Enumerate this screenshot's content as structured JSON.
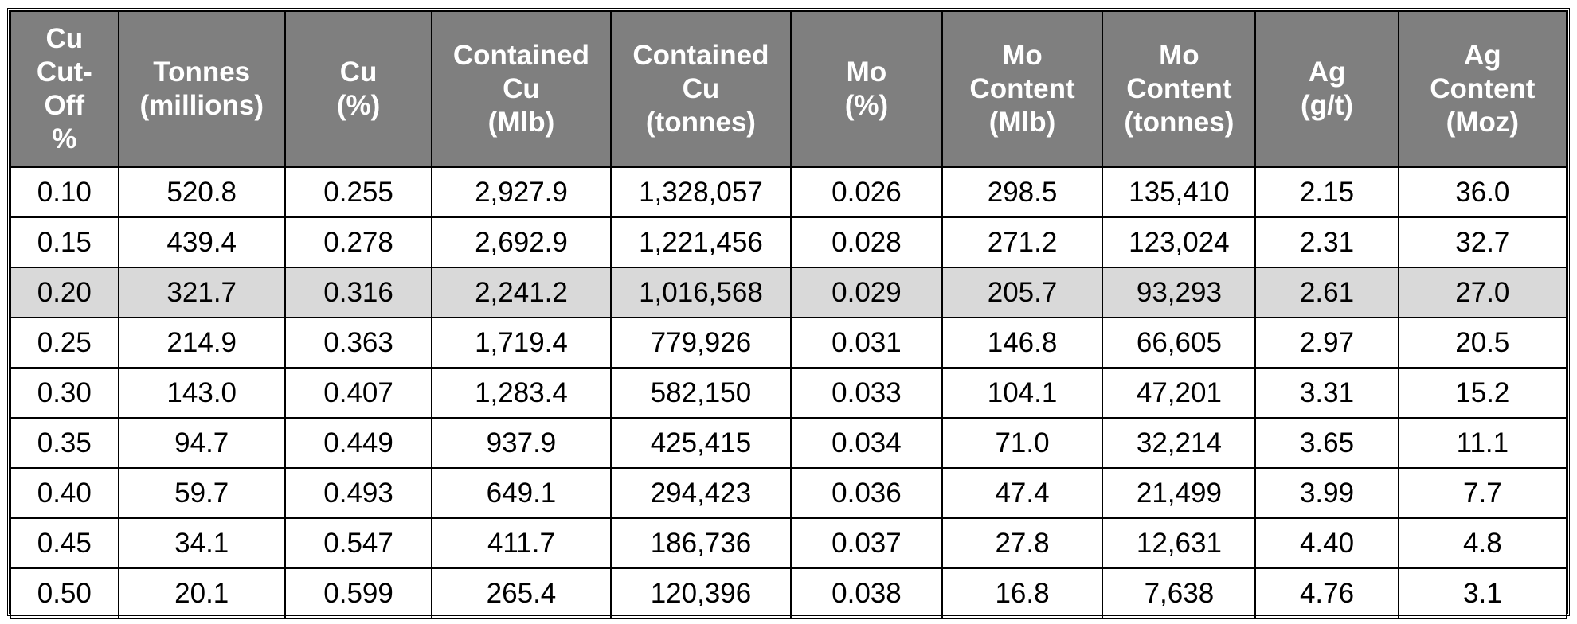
{
  "table": {
    "headers": [
      [
        "Cu",
        "Cut-",
        "Off",
        "%"
      ],
      [
        "Tonnes",
        "(millions)"
      ],
      [
        "Cu",
        "(%)"
      ],
      [
        "Contained",
        "Cu",
        "(Mlb)"
      ],
      [
        "Contained",
        "Cu",
        "(tonnes)"
      ],
      [
        "Mo",
        "(%)"
      ],
      [
        "Mo",
        "Content",
        "(Mlb)"
      ],
      [
        "Mo",
        "Content",
        "(tonnes)"
      ],
      [
        "Ag",
        "(g/t)"
      ],
      [
        "Ag",
        "Content",
        "(Moz)"
      ]
    ],
    "highlight_row_index": 2,
    "highlight_color": "#d9d9d9",
    "header_color": "#7f7f7f",
    "rows": [
      [
        "0.10",
        "520.8",
        "0.255",
        "2,927.9",
        "1,328,057",
        "0.026",
        "298.5",
        "135,410",
        "2.15",
        "36.0"
      ],
      [
        "0.15",
        "439.4",
        "0.278",
        "2,692.9",
        "1,221,456",
        "0.028",
        "271.2",
        "123,024",
        "2.31",
        "32.7"
      ],
      [
        "0.20",
        "321.7",
        "0.316",
        "2,241.2",
        "1,016,568",
        "0.029",
        "205.7",
        "93,293",
        "2.61",
        "27.0"
      ],
      [
        "0.25",
        "214.9",
        "0.363",
        "1,719.4",
        "779,926",
        "0.031",
        "146.8",
        "66,605",
        "2.97",
        "20.5"
      ],
      [
        "0.30",
        "143.0",
        "0.407",
        "1,283.4",
        "582,150",
        "0.033",
        "104.1",
        "47,201",
        "3.31",
        "15.2"
      ],
      [
        "0.35",
        "94.7",
        "0.449",
        "937.9",
        "425,415",
        "0.034",
        "71.0",
        "32,214",
        "3.65",
        "11.1"
      ],
      [
        "0.40",
        "59.7",
        "0.493",
        "649.1",
        "294,423",
        "0.036",
        "47.4",
        "21,499",
        "3.99",
        "7.7"
      ],
      [
        "0.45",
        "34.1",
        "0.547",
        "411.7",
        "186,736",
        "0.037",
        "27.8",
        "12,631",
        "4.40",
        "4.8"
      ],
      [
        "0.50",
        "20.1",
        "0.599",
        "265.4",
        "120,396",
        "0.038",
        "16.8",
        "7,638",
        "4.76",
        "3.1"
      ]
    ]
  }
}
